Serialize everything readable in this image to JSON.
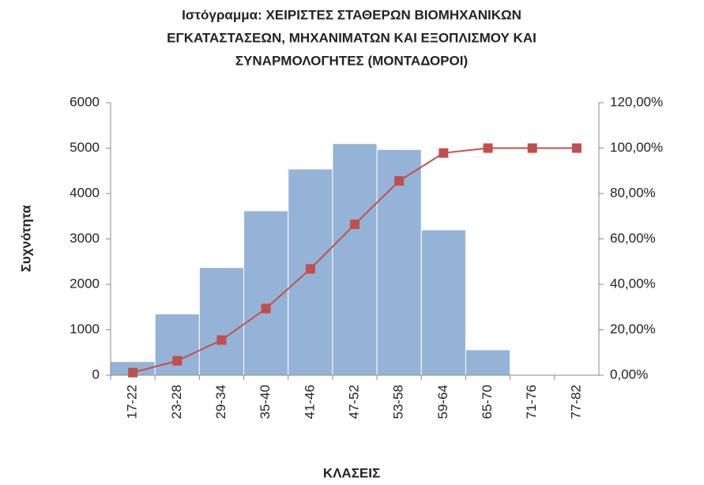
{
  "chart_data": {
    "type": "bar",
    "title": [
      "Ιστόγραμμα: ΧΕΙΡΙΣΤΕΣ ΣΤΑΘΕΡΩΝ ΒΙΟΜΗΧΑΝΙΚΩΝ",
      "ΕΓΚΑΤΑΣΤΑΣΕΩΝ, ΜΗΧΑΝΙΜΑΤΩΝ ΚΑΙ ΕΞΟΠΛΙΣΜΟΥ ΚΑΙ",
      "ΣΥΝΑΡΜΟΛΟΓΗΤΕΣ (ΜΟΝΤΑΔΟΡΟΙ)"
    ],
    "x_label": "ΚΛΑΣΕΙΣ",
    "y_label": "Συχνότητα",
    "categories": [
      "17-22",
      "23-28",
      "29-34",
      "35-40",
      "41-46",
      "47-52",
      "53-58",
      "59-64",
      "65-70",
      "71-76",
      "77-82"
    ],
    "series": [
      {
        "type": "bar",
        "color": "#95b3d7",
        "values": [
          300,
          1350,
          2370,
          3620,
          4540,
          5100,
          4970,
          3200,
          560,
          0,
          0
        ]
      },
      {
        "type": "line",
        "axis": "y2",
        "color": "#c0504d",
        "values": [
          1.15,
          6.34,
          15.46,
          29.37,
          46.83,
          66.44,
          85.54,
          97.85,
          100,
          100,
          100
        ]
      }
    ],
    "ylim": [
      0,
      6000
    ],
    "yticks": [
      0,
      1000,
      2000,
      3000,
      4000,
      5000,
      6000
    ],
    "y2lim": [
      0,
      120
    ],
    "y2ticks": [
      {
        "value": 0,
        "label": "0,00%"
      },
      {
        "value": 20,
        "label": "20,00%"
      },
      {
        "value": 40,
        "label": "40,00%"
      },
      {
        "value": 60,
        "label": "60,00%"
      },
      {
        "value": 80,
        "label": "80,00%"
      },
      {
        "value": 100,
        "label": "100,00%"
      },
      {
        "value": 120,
        "label": "120,00%"
      }
    ]
  }
}
